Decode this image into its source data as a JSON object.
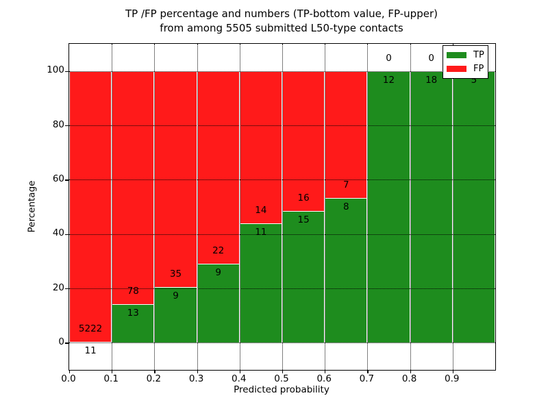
{
  "title": {
    "line1": "TP /FP percentage and numbers (TP-bottom value, FP-upper)",
    "line2": "from among 5505 submitted L50-type contacts"
  },
  "chart_data": {
    "type": "bar",
    "stacked": true,
    "percent_normalized": true,
    "title": "TP /FP percentage and numbers (TP-bottom value, FP-upper) from among 5505 submitted L50-type contacts",
    "xlabel": "Predicted probability",
    "ylabel": "Percentage",
    "bin_starts": [
      0.0,
      0.1,
      0.2,
      0.3,
      0.4,
      0.5,
      0.6,
      0.7,
      0.8,
      0.9
    ],
    "bin_width": 0.1,
    "series": [
      {
        "name": "TP",
        "color": "#1e8c1e",
        "counts": [
          11,
          13,
          9,
          9,
          11,
          15,
          8,
          12,
          18,
          5
        ]
      },
      {
        "name": "FP",
        "color": "#ff1a1a",
        "counts": [
          5222,
          78,
          35,
          22,
          14,
          16,
          7,
          0,
          0,
          0
        ]
      }
    ],
    "tp_percent": [
      0.21,
      14.29,
      20.45,
      29.03,
      44.0,
      48.39,
      53.33,
      100.0,
      100.0,
      100.0
    ],
    "xticks": [
      "0.0",
      "0.1",
      "0.2",
      "0.3",
      "0.4",
      "0.5",
      "0.6",
      "0.7",
      "0.8",
      "0.9"
    ],
    "yticks": [
      0,
      20,
      40,
      60,
      80,
      100
    ],
    "xlim": [
      0.0,
      1.0
    ],
    "ylim": [
      -10,
      110
    ],
    "grid": "dotted both axes, drawn above bars",
    "legend": {
      "position": "upper right",
      "entries": [
        "TP",
        "FP"
      ]
    }
  }
}
